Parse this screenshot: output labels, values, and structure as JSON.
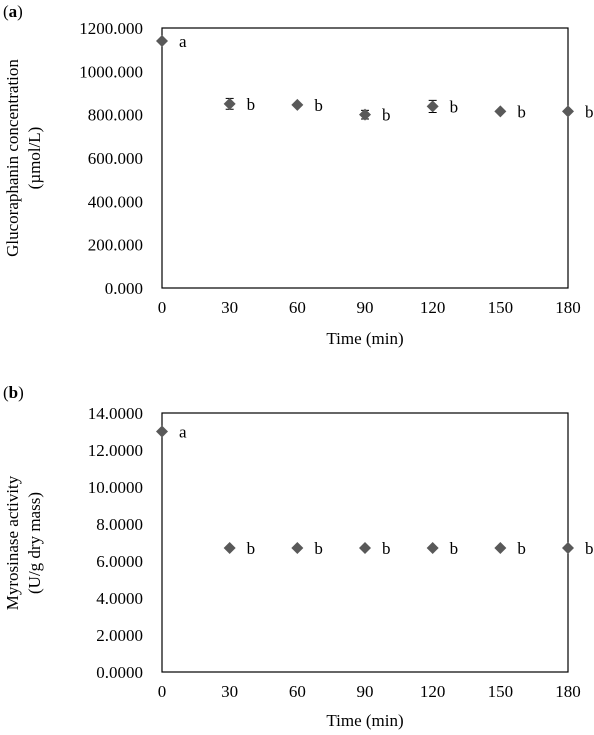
{
  "chart_data": [
    {
      "type": "scatter",
      "panel_label": "a",
      "xlabel": "Time (min)",
      "ylabel_lines": [
        "Glucoraphanin concentration",
        "(µmol/L)"
      ],
      "xlim": [
        0,
        180
      ],
      "ylim": [
        0,
        1200
      ],
      "x_ticks": [
        "0",
        "30",
        "60",
        "90",
        "120",
        "150",
        "180"
      ],
      "y_ticks": [
        "0.000",
        "200.000",
        "400.000",
        "600.000",
        "800.000",
        "1000.000",
        "1200.000"
      ],
      "grid": false,
      "marker_color": "#595959",
      "series": [
        {
          "x": [
            0,
            30,
            60,
            90,
            120,
            150,
            180
          ],
          "y": [
            1140,
            850,
            845,
            800,
            838,
            815,
            815
          ],
          "error": [
            0,
            25,
            0,
            20,
            28,
            0,
            0
          ],
          "labels": [
            "a",
            "b",
            "b",
            "b",
            "b",
            "b",
            "b"
          ]
        }
      ]
    },
    {
      "type": "scatter",
      "panel_label": "b",
      "xlabel": "Time (min)",
      "ylabel_lines": [
        "Myrosinase activity",
        "(U/g dry mass)"
      ],
      "xlim": [
        0,
        180
      ],
      "ylim": [
        0,
        14
      ],
      "x_ticks": [
        "0",
        "30",
        "60",
        "90",
        "120",
        "150",
        "180"
      ],
      "y_ticks": [
        "0.0000",
        "2.0000",
        "4.0000",
        "6.0000",
        "8.0000",
        "10.0000",
        "12.0000",
        "14.0000"
      ],
      "grid": false,
      "marker_color": "#595959",
      "series": [
        {
          "x": [
            0,
            30,
            60,
            90,
            120,
            150,
            180
          ],
          "y": [
            13.0,
            6.7,
            6.7,
            6.7,
            6.7,
            6.7,
            6.7
          ],
          "error": [
            0,
            0,
            0,
            0,
            0,
            0,
            0
          ],
          "labels": [
            "a",
            "b",
            "b",
            "b",
            "b",
            "b",
            "b"
          ]
        }
      ]
    }
  ]
}
